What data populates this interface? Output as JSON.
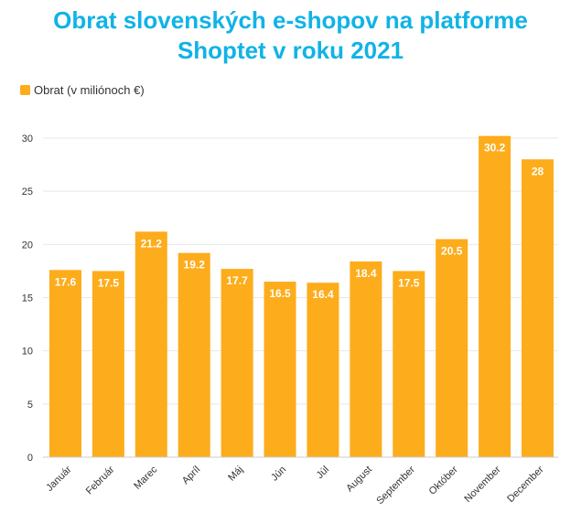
{
  "title_line1": "Obrat slovenských e-shopov na platforme",
  "title_line2": "Shoptet v roku 2021",
  "colors": {
    "title": "#10b3e6",
    "bar": "#fdac1b",
    "grid": "#e8e8e8"
  },
  "chart_data": {
    "type": "bar",
    "title": "Obrat slovenských e-shopov na platforme Shoptet v roku 2021",
    "categories": [
      "Január",
      "Február",
      "Marec",
      "Apríl",
      "Máj",
      "Jún",
      "Júl",
      "August",
      "September",
      "Október",
      "November",
      "December"
    ],
    "series": [
      {
        "name": "Obrat (v miliónoch €)",
        "values": [
          17.6,
          17.5,
          21.2,
          19.2,
          17.7,
          16.5,
          16.4,
          18.4,
          17.5,
          20.5,
          30.2,
          28
        ]
      }
    ],
    "data_labels": [
      "17.6",
      "17.5",
      "21.2",
      "19.2",
      "17.7",
      "16.5",
      "16.4",
      "18.4",
      "17.5",
      "20.5",
      "30.2",
      "28"
    ],
    "yticks": [
      "0",
      "5",
      "10",
      "15",
      "20",
      "25",
      "30"
    ],
    "ylim": [
      0,
      30
    ],
    "grid": true,
    "legend_position": "top-left"
  }
}
